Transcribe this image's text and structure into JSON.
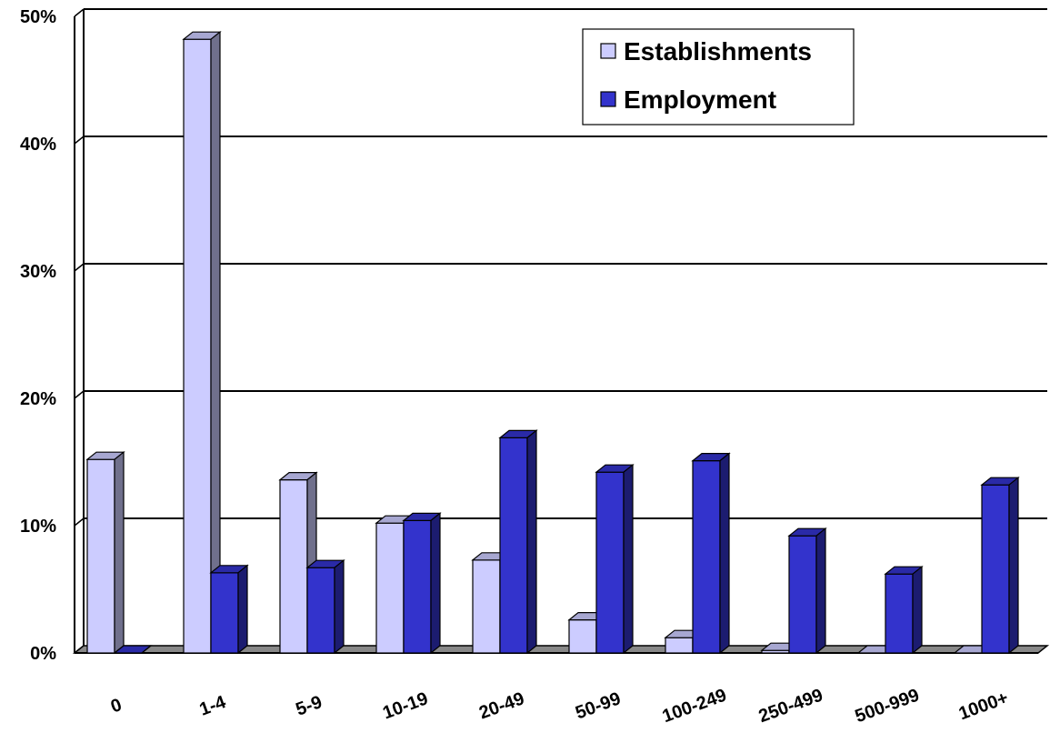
{
  "chart_data": {
    "type": "bar",
    "categories": [
      "0",
      "1-4",
      "5-9",
      "10-19",
      "20-49",
      "50-99",
      "100-249",
      "250-499",
      "500-999",
      "1000+"
    ],
    "series": [
      {
        "name": "Establishments",
        "color": "#ccccff",
        "values": [
          15.2,
          48.2,
          13.6,
          10.2,
          7.3,
          2.6,
          1.2,
          0.2,
          0.0,
          0.0
        ]
      },
      {
        "name": "Employment",
        "color": "#3333cc",
        "values": [
          0.0,
          6.3,
          6.7,
          10.4,
          16.9,
          14.2,
          15.1,
          9.2,
          6.2,
          13.2
        ]
      }
    ],
    "yticks": [
      "0%",
      "10%",
      "20%",
      "30%",
      "40%",
      "50%"
    ],
    "ylim": [
      0,
      50
    ],
    "grid": true,
    "legend_position": "top-right",
    "style": "3d-clustered"
  }
}
